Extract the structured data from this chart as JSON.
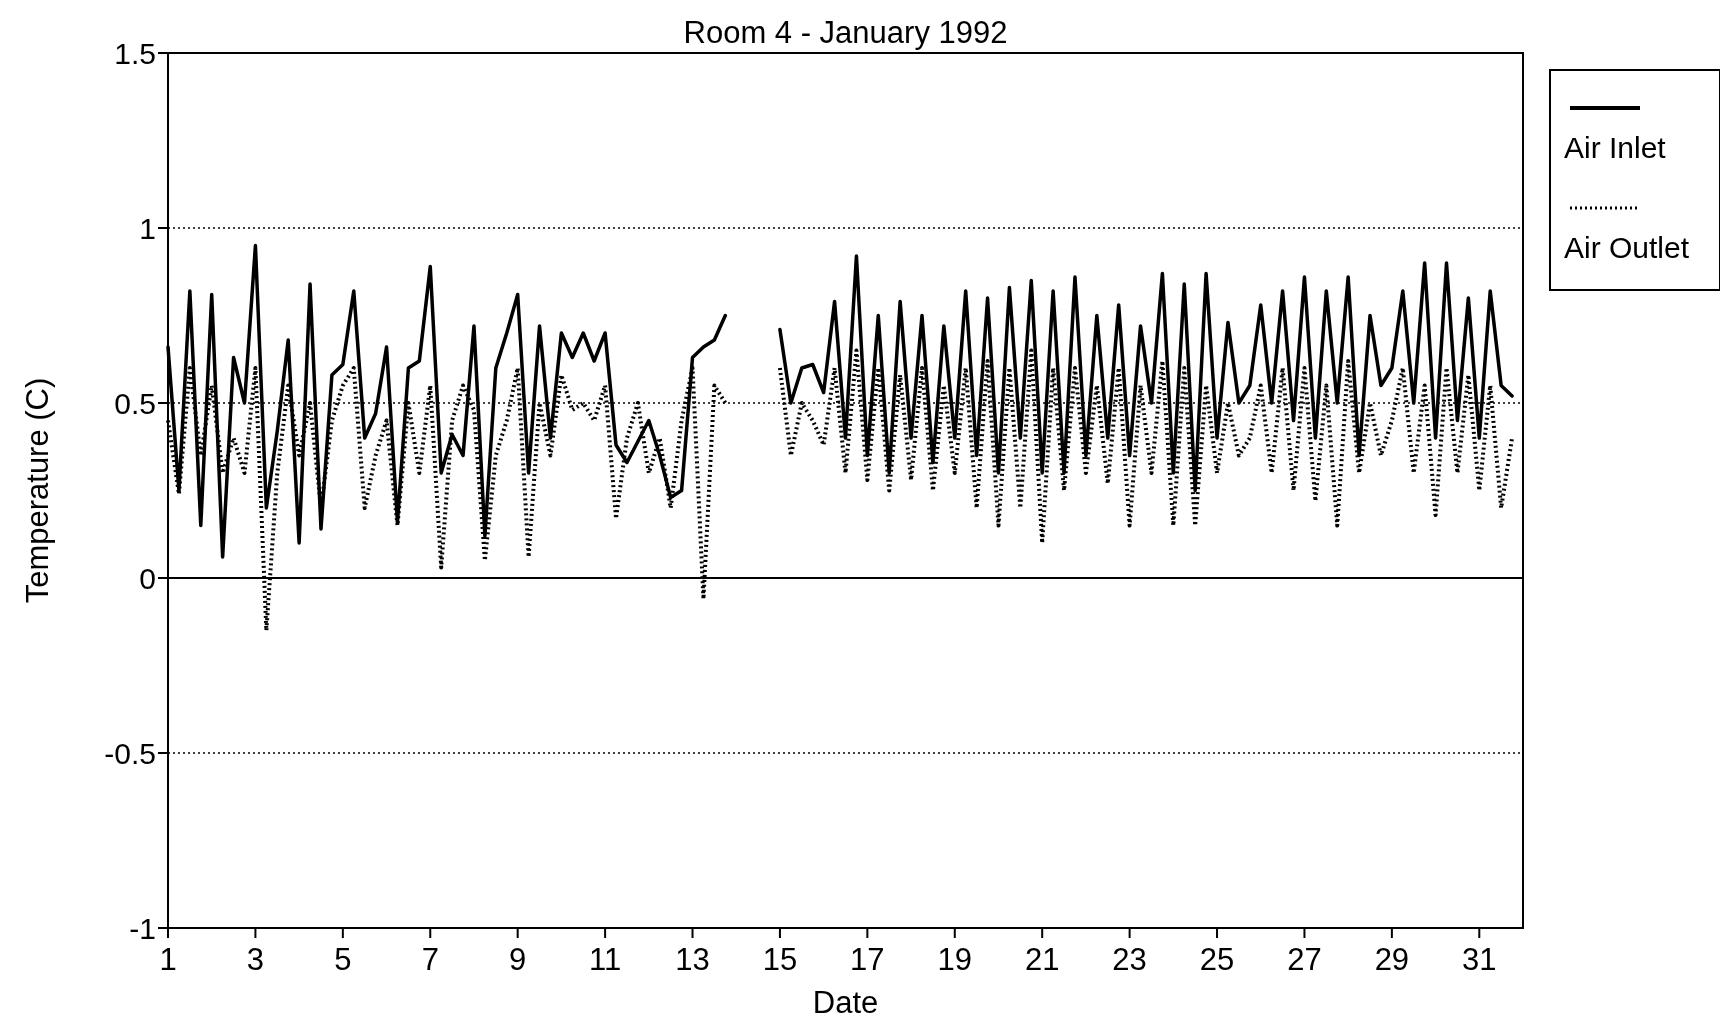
{
  "chart_data": {
    "type": "line",
    "title": "Room 4 - January 1992",
    "xlabel": "Date",
    "ylabel": "Temperature (C)",
    "x": [
      1,
      1.25,
      1.5,
      1.75,
      2,
      2.25,
      2.5,
      2.75,
      3,
      3.25,
      3.5,
      3.75,
      4,
      4.25,
      4.5,
      4.75,
      5,
      5.25,
      5.5,
      5.75,
      6,
      6.25,
      6.5,
      6.75,
      7,
      7.25,
      7.5,
      7.75,
      8,
      8.25,
      8.5,
      8.75,
      9,
      9.25,
      9.5,
      9.75,
      10,
      10.25,
      10.5,
      10.75,
      11,
      11.25,
      11.5,
      11.75,
      12,
      12.25,
      12.5,
      12.75,
      13,
      13.25,
      13.5,
      13.75,
      14,
      14.25,
      14.5,
      14.75,
      15,
      15.25,
      15.5,
      15.75,
      16,
      16.25,
      16.5,
      16.75,
      17,
      17.25,
      17.5,
      17.75,
      18,
      18.25,
      18.5,
      18.75,
      19,
      19.25,
      19.5,
      19.75,
      20,
      20.25,
      20.5,
      20.75,
      21,
      21.25,
      21.5,
      21.75,
      22,
      22.25,
      22.5,
      22.75,
      23,
      23.25,
      23.5,
      23.75,
      24,
      24.25,
      24.5,
      24.75,
      25,
      25.25,
      25.5,
      25.75,
      26,
      26.25,
      26.5,
      26.75,
      27,
      27.25,
      27.5,
      27.75,
      28,
      28.25,
      28.5,
      28.75,
      29,
      29.25,
      29.5,
      29.75,
      30,
      30.25,
      30.5,
      30.75,
      31,
      31.25,
      31.5,
      31.75
    ],
    "series": [
      {
        "name": "Air Inlet",
        "color": "#000000",
        "line_style": "solid",
        "values": [
          0.66,
          0.25,
          0.82,
          0.15,
          0.81,
          0.06,
          0.63,
          0.5,
          0.95,
          0.2,
          0.42,
          0.68,
          0.1,
          0.84,
          0.14,
          0.58,
          0.61,
          0.82,
          0.4,
          0.47,
          0.66,
          0.16,
          0.6,
          0.62,
          0.89,
          0.3,
          0.41,
          0.35,
          0.72,
          0.12,
          0.6,
          0.7,
          0.81,
          0.3,
          0.72,
          0.4,
          0.7,
          0.63,
          0.7,
          0.62,
          0.7,
          0.38,
          0.33,
          0.39,
          0.45,
          0.35,
          0.23,
          0.25,
          0.63,
          0.66,
          0.68,
          0.75,
          null,
          null,
          null,
          null,
          0.71,
          0.5,
          0.6,
          0.61,
          0.53,
          0.79,
          0.4,
          0.92,
          0.35,
          0.75,
          0.3,
          0.79,
          0.4,
          0.75,
          0.33,
          0.72,
          0.4,
          0.82,
          0.35,
          0.8,
          0.3,
          0.83,
          0.4,
          0.85,
          0.3,
          0.82,
          0.3,
          0.86,
          0.35,
          0.75,
          0.4,
          0.78,
          0.35,
          0.72,
          0.5,
          0.87,
          0.3,
          0.84,
          0.25,
          0.87,
          0.4,
          0.73,
          0.5,
          0.55,
          0.78,
          0.5,
          0.82,
          0.45,
          0.86,
          0.4,
          0.82,
          0.5,
          0.86,
          0.35,
          0.75,
          0.55,
          0.6,
          0.82,
          0.5,
          0.9,
          0.4,
          0.9,
          0.45,
          0.8,
          0.4,
          0.82,
          0.55,
          0.52
        ]
      },
      {
        "name": "Air Outlet",
        "color": "#000000",
        "line_style": "dotted",
        "values": [
          0.45,
          0.24,
          0.6,
          0.35,
          0.55,
          0.3,
          0.4,
          0.3,
          0.6,
          -0.15,
          0.3,
          0.55,
          0.35,
          0.5,
          0.2,
          0.45,
          0.55,
          0.6,
          0.2,
          0.35,
          0.45,
          0.15,
          0.5,
          0.3,
          0.55,
          0.03,
          0.45,
          0.55,
          0.48,
          0.05,
          0.35,
          0.45,
          0.6,
          0.06,
          0.5,
          0.35,
          0.58,
          0.48,
          0.5,
          0.45,
          0.55,
          0.17,
          0.4,
          0.5,
          0.3,
          0.4,
          0.2,
          0.45,
          0.6,
          -0.06,
          0.55,
          0.5,
          null,
          null,
          null,
          null,
          0.6,
          0.35,
          0.5,
          0.45,
          0.38,
          0.6,
          0.3,
          0.65,
          0.28,
          0.6,
          0.25,
          0.58,
          0.28,
          0.6,
          0.25,
          0.55,
          0.3,
          0.6,
          0.2,
          0.62,
          0.15,
          0.6,
          0.2,
          0.65,
          0.1,
          0.6,
          0.25,
          0.6,
          0.3,
          0.55,
          0.27,
          0.6,
          0.15,
          0.55,
          0.3,
          0.62,
          0.15,
          0.6,
          0.15,
          0.55,
          0.3,
          0.5,
          0.35,
          0.4,
          0.55,
          0.3,
          0.6,
          0.25,
          0.6,
          0.22,
          0.55,
          0.15,
          0.62,
          0.3,
          0.5,
          0.35,
          0.45,
          0.6,
          0.3,
          0.55,
          0.18,
          0.6,
          0.3,
          0.58,
          0.25,
          0.55,
          0.2,
          0.4
        ]
      }
    ],
    "xlim": [
      1,
      32
    ],
    "xticks": [
      1,
      3,
      5,
      7,
      9,
      11,
      13,
      15,
      17,
      19,
      21,
      23,
      25,
      27,
      29,
      31
    ],
    "ylim": [
      -1,
      1.5
    ],
    "yticks": [
      -1,
      -0.5,
      0,
      0.5,
      1,
      1.5
    ],
    "grid": "y",
    "legend": "right",
    "ref_lines": [
      {
        "axis": "y",
        "value": 0,
        "line_style": "solid"
      }
    ]
  }
}
